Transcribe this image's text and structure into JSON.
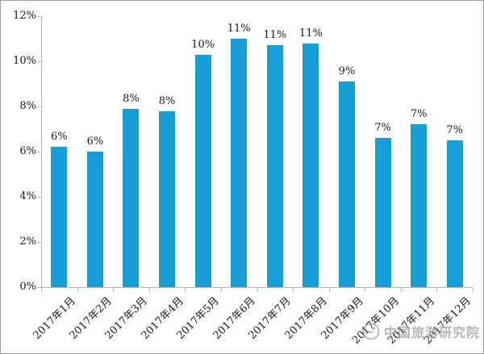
{
  "chart_data": {
    "type": "bar",
    "title": "",
    "xlabel": "",
    "ylabel": "",
    "categories": [
      "2017年1月",
      "2017年2月",
      "2017年3月",
      "2017年4月",
      "2017年5月",
      "2017年6月",
      "2017年7月",
      "2017年8月",
      "2017年9月",
      "2017年10月",
      "2017年11月",
      "2017年12月"
    ],
    "values": [
      6.2,
      6.0,
      7.9,
      7.8,
      10.3,
      11.0,
      10.7,
      10.8,
      9.1,
      6.6,
      7.2,
      6.5
    ],
    "data_labels": [
      "6%",
      "6%",
      "8%",
      "8%",
      "10%",
      "11%",
      "11%",
      "11%",
      "9%",
      "7%",
      "7%",
      "7%"
    ],
    "ylim": [
      0,
      12
    ],
    "ytick_values": [
      0,
      2,
      4,
      6,
      8,
      10,
      12
    ],
    "ytick_labels": [
      "0%",
      "2%",
      "4%",
      "6%",
      "8%",
      "10%",
      "12%"
    ],
    "grid": false,
    "legend": null,
    "bar_color": "#189ED6",
    "axis_color": "#b5b5b5",
    "text_color": "#1a1a1a"
  },
  "watermark": {
    "logo": "china-tourism-academy-logo",
    "text": "中国旅游研究院",
    "color": "#9b9b9b"
  }
}
